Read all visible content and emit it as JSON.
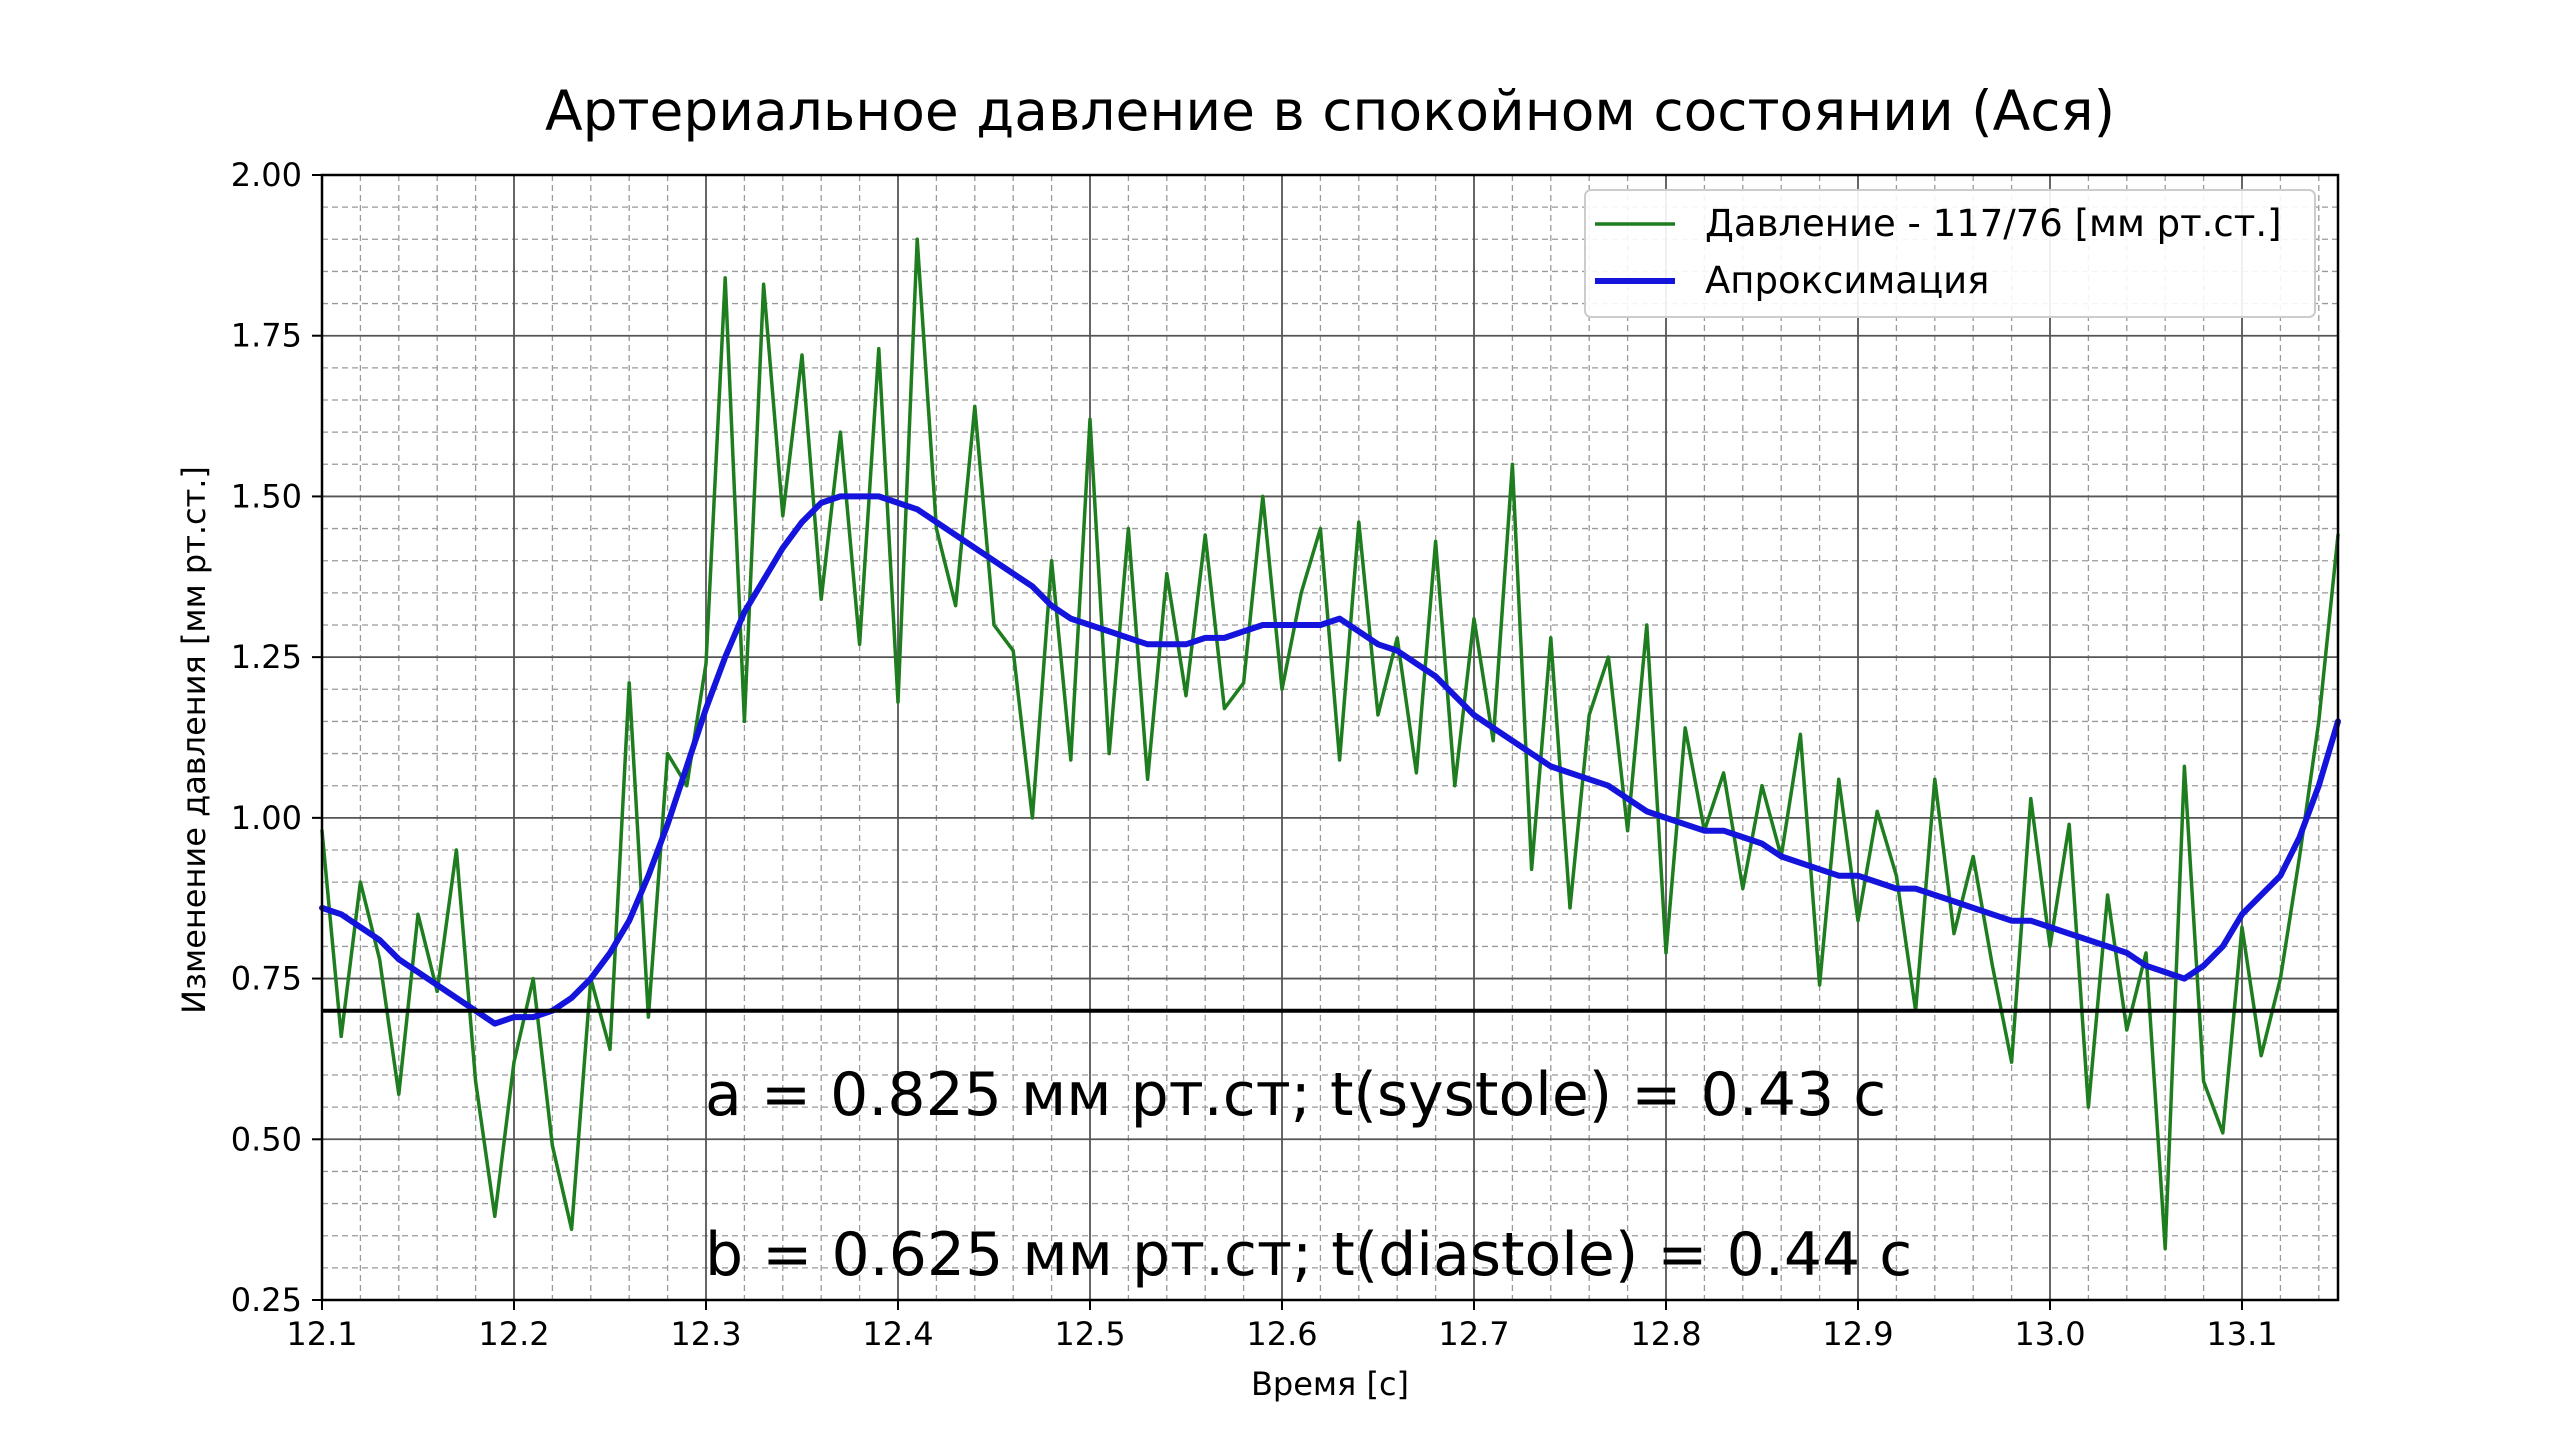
{
  "chart_data": {
    "type": "line",
    "title": "Артериальное давление в спокойном состоянии (Ася)",
    "xlabel": "Время [с]",
    "ylabel": "Изменение давления [мм рт.ст.]",
    "xlim": [
      12.1,
      13.15
    ],
    "ylim": [
      0.25,
      2.0
    ],
    "xticks": [
      "12.1",
      "12.2",
      "12.3",
      "12.4",
      "12.5",
      "12.6",
      "12.7",
      "12.8",
      "12.9",
      "13.0",
      "13.1"
    ],
    "yticks": [
      "0.25",
      "0.50",
      "0.75",
      "1.00",
      "1.25",
      "1.50",
      "1.75",
      "2.00"
    ],
    "grid": true,
    "minor_grid": true,
    "legend_position": "top-right",
    "reference_line": {
      "y": 0.7,
      "color": "#000000"
    },
    "series": [
      {
        "name": "Давление - 117/76 [мм рт.ст.]",
        "color": "#1e7d1e",
        "x": [
          12.1,
          12.11,
          12.12,
          12.13,
          12.14,
          12.15,
          12.16,
          12.17,
          12.18,
          12.19,
          12.2,
          12.21,
          12.22,
          12.23,
          12.24,
          12.25,
          12.26,
          12.27,
          12.28,
          12.29,
          12.3,
          12.31,
          12.32,
          12.33,
          12.34,
          12.35,
          12.36,
          12.37,
          12.38,
          12.39,
          12.4,
          12.41,
          12.42,
          12.43,
          12.44,
          12.45,
          12.46,
          12.47,
          12.48,
          12.49,
          12.5,
          12.51,
          12.52,
          12.53,
          12.54,
          12.55,
          12.56,
          12.57,
          12.58,
          12.59,
          12.6,
          12.61,
          12.62,
          12.63,
          12.64,
          12.65,
          12.66,
          12.67,
          12.68,
          12.69,
          12.7,
          12.71,
          12.72,
          12.73,
          12.74,
          12.75,
          12.76,
          12.77,
          12.78,
          12.79,
          12.8,
          12.81,
          12.82,
          12.83,
          12.84,
          12.85,
          12.86,
          12.87,
          12.88,
          12.89,
          12.9,
          12.91,
          12.92,
          12.93,
          12.94,
          12.95,
          12.96,
          12.97,
          12.98,
          12.99,
          13.0,
          13.01,
          13.02,
          13.03,
          13.04,
          13.05,
          13.06,
          13.07,
          13.08,
          13.09,
          13.1,
          13.11,
          13.12,
          13.13,
          13.14,
          13.15
        ],
        "y": [
          0.98,
          0.66,
          0.9,
          0.78,
          0.57,
          0.85,
          0.73,
          0.95,
          0.59,
          0.38,
          0.62,
          0.75,
          0.49,
          0.36,
          0.75,
          0.64,
          1.21,
          0.69,
          1.1,
          1.05,
          1.24,
          1.84,
          1.15,
          1.83,
          1.47,
          1.72,
          1.34,
          1.6,
          1.27,
          1.73,
          1.18,
          1.9,
          1.45,
          1.33,
          1.64,
          1.3,
          1.26,
          1.0,
          1.4,
          1.09,
          1.62,
          1.1,
          1.45,
          1.06,
          1.38,
          1.19,
          1.44,
          1.17,
          1.21,
          1.5,
          1.2,
          1.35,
          1.45,
          1.09,
          1.46,
          1.16,
          1.28,
          1.07,
          1.43,
          1.05,
          1.31,
          1.12,
          1.55,
          0.92,
          1.28,
          0.86,
          1.16,
          1.25,
          0.98,
          1.3,
          0.79,
          1.14,
          0.98,
          1.07,
          0.89,
          1.05,
          0.94,
          1.13,
          0.74,
          1.06,
          0.84,
          1.01,
          0.91,
          0.7,
          1.06,
          0.82,
          0.94,
          0.77,
          0.62,
          1.03,
          0.8,
          0.99,
          0.55,
          0.88,
          0.67,
          0.79,
          0.33,
          1.08,
          0.59,
          0.51,
          0.83,
          0.63,
          0.75,
          0.94,
          1.15,
          1.44
        ]
      },
      {
        "name": "Апроксимация",
        "color": "#1414dc",
        "x": [
          12.1,
          12.11,
          12.12,
          12.13,
          12.14,
          12.15,
          12.16,
          12.17,
          12.18,
          12.19,
          12.2,
          12.21,
          12.22,
          12.23,
          12.24,
          12.25,
          12.26,
          12.27,
          12.28,
          12.29,
          12.3,
          12.31,
          12.32,
          12.33,
          12.34,
          12.35,
          12.36,
          12.37,
          12.38,
          12.39,
          12.4,
          12.41,
          12.42,
          12.43,
          12.44,
          12.45,
          12.46,
          12.47,
          12.48,
          12.49,
          12.5,
          12.51,
          12.52,
          12.53,
          12.54,
          12.55,
          12.56,
          12.57,
          12.58,
          12.59,
          12.6,
          12.61,
          12.62,
          12.63,
          12.64,
          12.65,
          12.66,
          12.67,
          12.68,
          12.69,
          12.7,
          12.71,
          12.72,
          12.73,
          12.74,
          12.75,
          12.76,
          12.77,
          12.78,
          12.79,
          12.8,
          12.81,
          12.82,
          12.83,
          12.84,
          12.85,
          12.86,
          12.87,
          12.88,
          12.89,
          12.9,
          12.91,
          12.92,
          12.93,
          12.94,
          12.95,
          12.96,
          12.97,
          12.98,
          12.99,
          13.0,
          13.01,
          13.02,
          13.03,
          13.04,
          13.05,
          13.06,
          13.07,
          13.08,
          13.09,
          13.1,
          13.11,
          13.12,
          13.13,
          13.14,
          13.15
        ],
        "y": [
          0.86,
          0.85,
          0.83,
          0.81,
          0.78,
          0.76,
          0.74,
          0.72,
          0.7,
          0.68,
          0.69,
          0.69,
          0.7,
          0.72,
          0.75,
          0.79,
          0.84,
          0.91,
          0.99,
          1.08,
          1.17,
          1.25,
          1.32,
          1.37,
          1.42,
          1.46,
          1.49,
          1.5,
          1.5,
          1.5,
          1.49,
          1.48,
          1.46,
          1.44,
          1.42,
          1.4,
          1.38,
          1.36,
          1.33,
          1.31,
          1.3,
          1.29,
          1.28,
          1.27,
          1.27,
          1.27,
          1.28,
          1.28,
          1.29,
          1.3,
          1.3,
          1.3,
          1.3,
          1.31,
          1.29,
          1.27,
          1.26,
          1.24,
          1.22,
          1.19,
          1.16,
          1.14,
          1.12,
          1.1,
          1.08,
          1.07,
          1.06,
          1.05,
          1.03,
          1.01,
          1.0,
          0.99,
          0.98,
          0.98,
          0.97,
          0.96,
          0.94,
          0.93,
          0.92,
          0.91,
          0.91,
          0.9,
          0.89,
          0.89,
          0.88,
          0.87,
          0.86,
          0.85,
          0.84,
          0.84,
          0.83,
          0.82,
          0.81,
          0.8,
          0.79,
          0.77,
          0.76,
          0.75,
          0.77,
          0.8,
          0.85,
          0.88,
          0.91,
          0.97,
          1.05,
          1.15
        ]
      }
    ],
    "annotations": [
      "a = 0.825 мм рт.ст;  t(systole) = 0.43 с",
      "b = 0.625 мм рт.ст;  t(diastole) = 0.44 с"
    ]
  }
}
